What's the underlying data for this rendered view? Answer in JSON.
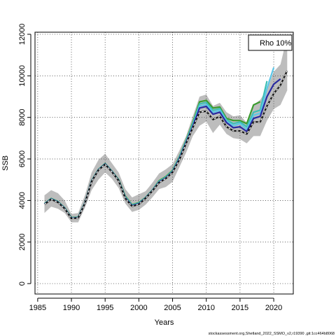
{
  "chart_data": {
    "type": "line",
    "xlabel": "Years",
    "ylabel": "SSB",
    "xlim": [
      1984.6,
      2022.9
    ],
    "ylim": [
      -500,
      12100
    ],
    "xticks": [
      1985,
      1990,
      1995,
      2000,
      2005,
      2010,
      2015,
      2020
    ],
    "yticks": [
      0,
      2000,
      4000,
      6000,
      8000,
      10000,
      12000
    ],
    "grid": true,
    "legend": {
      "placement": "top-right",
      "text": "Rho 10%"
    },
    "band": {
      "color": "#bdbdbd",
      "x": [
        1986,
        1987,
        1988,
        1989,
        1990,
        1991,
        1992,
        1993,
        1994,
        1995,
        1996,
        1997,
        1998,
        1999,
        2000,
        2001,
        2002,
        2003,
        2004,
        2005,
        2006,
        2007,
        2008,
        2009,
        2010,
        2011,
        2012,
        2013,
        2014,
        2015,
        2016,
        2017,
        2018,
        2019,
        2020,
        2021,
        2022
      ],
      "lower": [
        3400,
        3700,
        3600,
        3400,
        2950,
        2950,
        3650,
        4500,
        5000,
        5350,
        5050,
        4600,
        3850,
        3450,
        3550,
        3800,
        4150,
        4550,
        4650,
        4900,
        5600,
        6300,
        7100,
        7600,
        7800,
        7250,
        7650,
        7200,
        7000,
        6950,
        6750,
        7100,
        7100,
        7850,
        8400,
        8600,
        9300
      ],
      "upper": [
        4250,
        4500,
        4350,
        4000,
        3350,
        3400,
        4250,
        5350,
        5950,
        6250,
        5800,
        5350,
        4550,
        4150,
        4300,
        4450,
        4850,
        5300,
        5500,
        5750,
        6400,
        7100,
        8050,
        9000,
        9100,
        8550,
        8700,
        8250,
        8050,
        8100,
        7750,
        8600,
        8850,
        9350,
        10200,
        10550,
        11900
      ]
    },
    "series": [
      {
        "color": "#3b9c2f",
        "x": [
          1986,
          1987,
          1988,
          1989,
          1990,
          1991,
          1992,
          1993,
          1994,
          1995,
          1996,
          1997,
          1998,
          1999,
          2000,
          2001,
          2002,
          2003,
          2004,
          2005,
          2006,
          2007,
          2008,
          2009,
          2010,
          2011,
          2012,
          2013,
          2014,
          2015,
          2016,
          2017,
          2018
        ],
        "y": [
          3850,
          4100,
          3950,
          3650,
          3180,
          3200,
          3900,
          4950,
          5500,
          5780,
          5420,
          5000,
          4200,
          3800,
          3900,
          4150,
          4500,
          4950,
          5150,
          5450,
          6100,
          6900,
          7750,
          8750,
          8820,
          8450,
          8500,
          7950,
          7850,
          7850,
          7700,
          8600,
          8750
        ]
      },
      {
        "color": "#3cbfb3",
        "x": [
          1986,
          1987,
          1988,
          1989,
          1990,
          1991,
          1992,
          1993,
          1994,
          1995,
          1996,
          1997,
          1998,
          1999,
          2000,
          2001,
          2002,
          2003,
          2004,
          2005,
          2006,
          2007,
          2008,
          2009,
          2010,
          2011,
          2012,
          2013,
          2014,
          2015,
          2016,
          2017,
          2018,
          2019
        ],
        "y": [
          3840,
          4090,
          3940,
          3640,
          3170,
          3190,
          3890,
          4940,
          5490,
          5770,
          5410,
          4980,
          4170,
          3780,
          3880,
          4140,
          4490,
          4920,
          5120,
          5420,
          6070,
          6860,
          7680,
          8650,
          8720,
          8340,
          8420,
          7880,
          7700,
          7780,
          7550,
          8250,
          8350,
          9750
        ]
      },
      {
        "color": "#5bc6e8",
        "x": [
          1986,
          1987,
          1988,
          1989,
          1990,
          1991,
          1992,
          1993,
          1994,
          1995,
          1996,
          1997,
          1998,
          1999,
          2000,
          2001,
          2002,
          2003,
          2004,
          2005,
          2006,
          2007,
          2008,
          2009,
          2010,
          2011,
          2012,
          2013,
          2014,
          2015,
          2016,
          2017,
          2018,
          2019,
          2020
        ],
        "y": [
          3830,
          4080,
          3930,
          3630,
          3160,
          3180,
          3880,
          4930,
          5480,
          5760,
          5400,
          4970,
          4150,
          3760,
          3860,
          4130,
          4480,
          4900,
          5100,
          5400,
          6040,
          6820,
          7620,
          8550,
          8620,
          8240,
          8340,
          7820,
          7600,
          7700,
          7420,
          8100,
          8200,
          9400,
          10400
        ]
      },
      {
        "color": "#2a2aa0",
        "x": [
          1986,
          1987,
          1988,
          1989,
          1990,
          1991,
          1992,
          1993,
          1994,
          1995,
          1996,
          1997,
          1998,
          1999,
          2000,
          2001,
          2002,
          2003,
          2004,
          2005,
          2006,
          2007,
          2008,
          2009,
          2010,
          2011,
          2012,
          2013,
          2014,
          2015,
          2016,
          2017,
          2018,
          2019,
          2020,
          2021
        ],
        "y": [
          3820,
          4070,
          3920,
          3620,
          3150,
          3170,
          3870,
          4920,
          5470,
          5750,
          5390,
          4960,
          4120,
          3740,
          3840,
          4120,
          4470,
          4880,
          5080,
          5380,
          6000,
          6780,
          7560,
          8450,
          8530,
          8150,
          8250,
          7750,
          7500,
          7550,
          7320,
          7950,
          8050,
          9000,
          9600,
          9850
        ]
      },
      {
        "color": "#111111",
        "x": [
          1986,
          1987,
          1988,
          1989,
          1990,
          1991,
          1992,
          1993,
          1994,
          1995,
          1996,
          1997,
          1998,
          1999,
          2000,
          2001,
          2002,
          2003,
          2004,
          2005,
          2006,
          2007,
          2008,
          2009,
          2010,
          2011,
          2012,
          2013,
          2014,
          2015,
          2016,
          2017,
          2018,
          2019,
          2020,
          2021,
          2022
        ],
        "y": [
          3810,
          4060,
          3910,
          3610,
          3140,
          3160,
          3860,
          4910,
          5460,
          5740,
          5380,
          4950,
          4100,
          3720,
          3820,
          4110,
          4460,
          4860,
          5060,
          5360,
          5960,
          6740,
          7500,
          8250,
          8300,
          7900,
          8050,
          7550,
          7350,
          7350,
          7200,
          7780,
          7780,
          8550,
          9150,
          9550,
          10250
        ]
      },
      {
        "color": "#ffffff",
        "dashed": true,
        "x": [
          1986,
          1987,
          1988,
          1989,
          1990,
          1991,
          1992,
          1993,
          1994,
          1995,
          1996,
          1997,
          1998,
          1999,
          2000,
          2001,
          2002,
          2003,
          2004,
          2005,
          2006,
          2007,
          2008,
          2009,
          2010,
          2011,
          2012,
          2013,
          2014,
          2015,
          2016,
          2017,
          2018,
          2019,
          2020,
          2021,
          2022
        ],
        "y": [
          3810,
          4060,
          3910,
          3610,
          3140,
          3160,
          3860,
          4910,
          5460,
          5740,
          5380,
          4950,
          4100,
          3720,
          3820,
          4110,
          4460,
          4860,
          5060,
          5360,
          5960,
          6740,
          7500,
          8250,
          8300,
          7900,
          8050,
          7550,
          7350,
          7350,
          7200,
          7780,
          7780,
          8550,
          9150,
          9550,
          10250
        ]
      }
    ]
  },
  "footer": "stockassessment.org,Shetland_2022_SSMO_v2,r19390 ,git:1cc464b8068"
}
